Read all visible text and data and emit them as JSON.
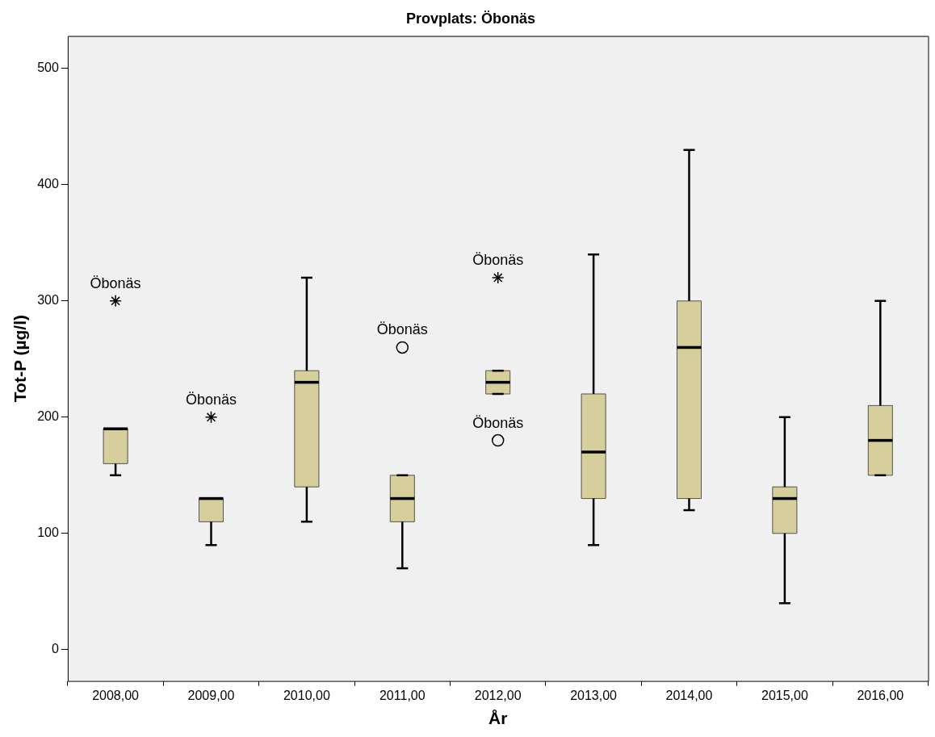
{
  "chart_data": {
    "type": "box",
    "title": "Provplats: Öbonäs",
    "xlabel": "År",
    "ylabel": "Tot-P (µg/l)",
    "categories": [
      "2008,00",
      "2009,00",
      "2010,00",
      "2011,00",
      "2012,00",
      "2013,00",
      "2014,00",
      "2015,00",
      "2016,00"
    ],
    "color": "#d6cf9c",
    "boxes": [
      {
        "low": 150,
        "q1": 160,
        "median": 190,
        "q3": 190,
        "high": 190
      },
      {
        "low": 90,
        "q1": 110,
        "median": 130,
        "q3": 130,
        "high": 130
      },
      {
        "low": 110,
        "q1": 140,
        "median": 230,
        "q3": 240,
        "high": 320
      },
      {
        "low": 70,
        "q1": 110,
        "median": 130,
        "q3": 150,
        "high": 150
      },
      {
        "low": 220,
        "q1": 220,
        "median": 230,
        "q3": 240,
        "high": 240
      },
      {
        "low": 90,
        "q1": 130,
        "median": 170,
        "q3": 220,
        "high": 340
      },
      {
        "low": 120,
        "q1": 130,
        "median": 260,
        "q3": 300,
        "high": 430
      },
      {
        "low": 40,
        "q1": 100,
        "median": 130,
        "q3": 140,
        "high": 200
      },
      {
        "low": 150,
        "q1": 150,
        "median": 180,
        "q3": 210,
        "high": 300
      }
    ],
    "series": [
      {
        "type": "scatter",
        "marker": "cross",
        "color": "#000000",
        "x": [
          "2008,00",
          "2009,00",
          "2012,00"
        ],
        "values": [
          300,
          200,
          320
        ]
      },
      {
        "type": "scatter",
        "marker": "circle",
        "color": "#000000",
        "x": [
          "2011,00",
          "2012,00"
        ],
        "values": [
          260,
          180
        ]
      }
    ],
    "annotations": [
      {
        "text": "Öbonäs",
        "x": "2008,00",
        "y": 300
      },
      {
        "text": "Öbonäs",
        "x": "2009,00",
        "y": 200
      },
      {
        "text": "Öbonäs",
        "x": "2011,00",
        "y": 260
      },
      {
        "text": "Öbonäs",
        "x": "2012,00",
        "y": 320
      },
      {
        "text": "Öbonäs",
        "x": "2012,00",
        "y": 180
      }
    ],
    "ylim": [
      -27,
      528
    ],
    "yticks": [
      0,
      100,
      200,
      300,
      400,
      500
    ]
  }
}
